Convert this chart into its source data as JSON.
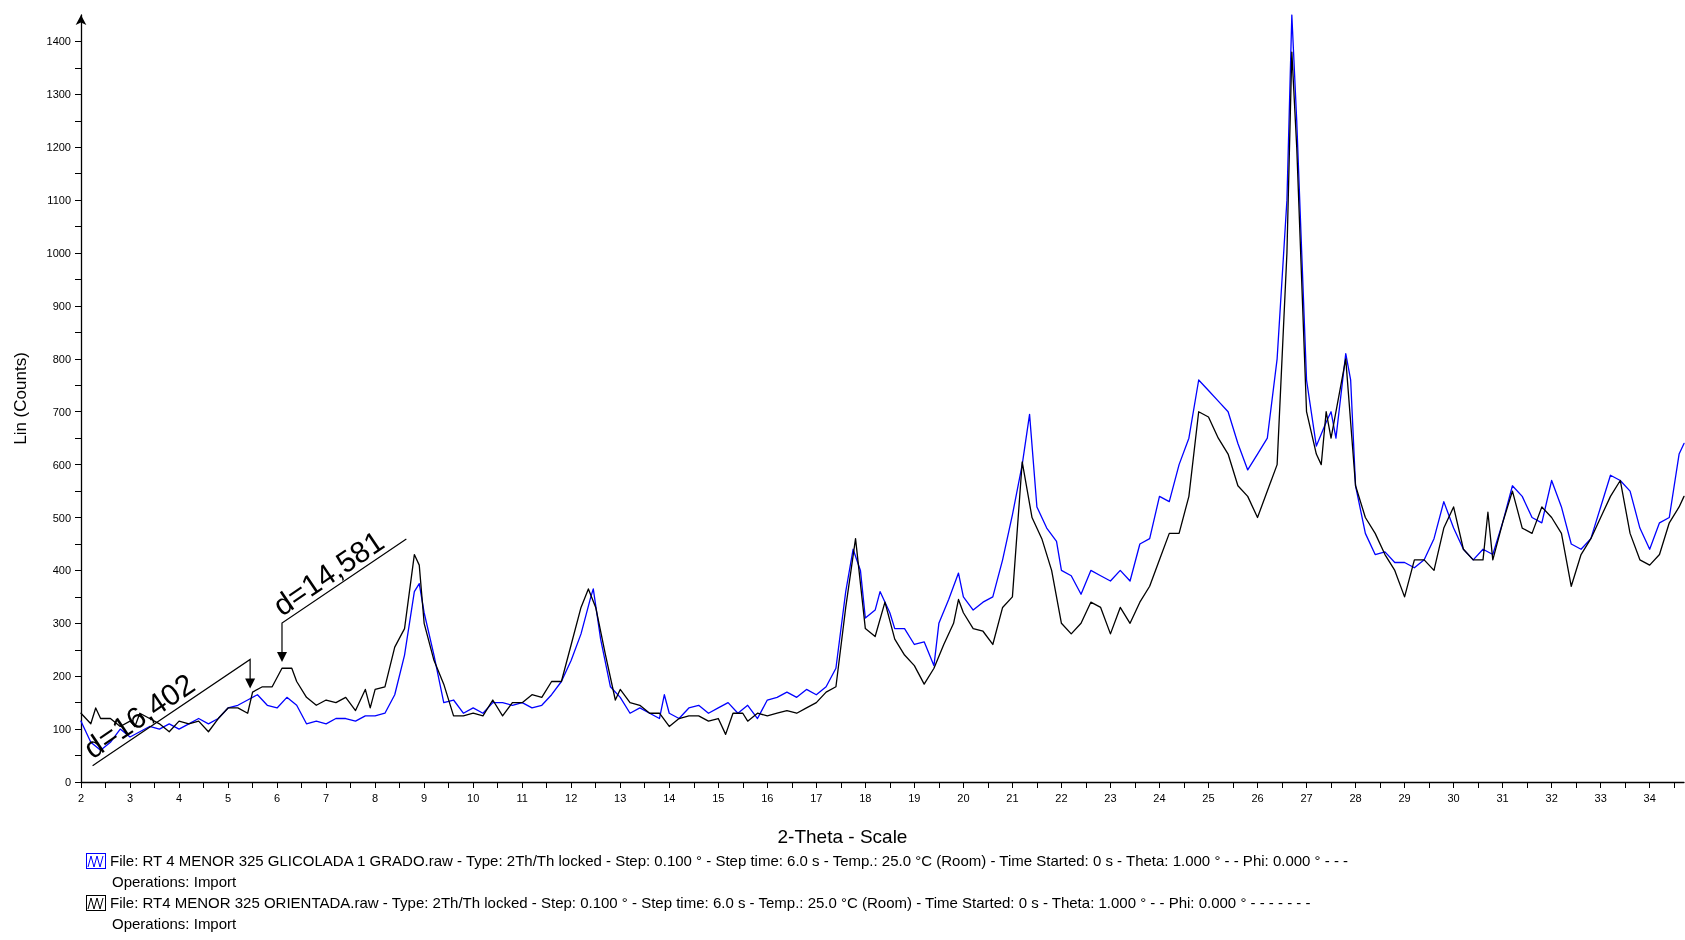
{
  "chart_data": {
    "type": "line",
    "xlabel": "2-Theta - Scale",
    "ylabel": "Lin (Counts)",
    "xlim": [
      2,
      34.7
    ],
    "ylim": [
      0,
      1450
    ],
    "xticks": [
      2,
      {
        "value": 2.5,
        "label": null
      },
      3,
      {
        "value": 3.5,
        "label": null
      },
      4,
      {
        "value": 4.5,
        "label": null
      },
      5,
      {
        "value": 5.5,
        "label": null
      },
      6,
      {
        "value": 6.5,
        "label": null
      },
      7,
      {
        "value": 7.5,
        "label": null
      },
      8,
      {
        "value": 8.5,
        "label": null
      },
      9,
      {
        "value": 9.5,
        "label": null
      },
      10,
      {
        "value": 10.5,
        "label": null
      },
      11,
      {
        "value": 11.5,
        "label": null
      },
      12,
      {
        "value": 12.5,
        "label": null
      },
      13,
      {
        "value": 13.5,
        "label": null
      },
      14,
      {
        "value": 14.5,
        "label": null
      },
      15,
      {
        "value": 15.5,
        "label": null
      },
      16,
      {
        "value": 16.5,
        "label": null
      },
      17,
      {
        "value": 17.5,
        "label": null
      },
      18,
      {
        "value": 18.5,
        "label": null
      },
      19,
      {
        "value": 19.5,
        "label": null
      },
      20,
      {
        "value": 20.5,
        "label": null
      },
      21,
      {
        "value": 21.5,
        "label": null
      },
      22,
      {
        "value": 22.5,
        "label": null
      },
      23,
      {
        "value": 23.5,
        "label": null
      },
      24,
      {
        "value": 24.5,
        "label": null
      },
      25,
      {
        "value": 25.5,
        "label": null
      },
      26,
      {
        "value": 26.5,
        "label": null
      },
      27,
      {
        "value": 27.5,
        "label": null
      },
      28,
      {
        "value": 28.5,
        "label": null
      },
      29,
      {
        "value": 29.5,
        "label": null
      },
      30,
      {
        "value": 30.5,
        "label": null
      },
      31,
      {
        "value": 31.5,
        "label": null
      },
      32,
      {
        "value": 32.5,
        "label": null
      },
      33,
      {
        "value": 33.5,
        "label": null
      },
      34,
      {
        "value": 34.5,
        "label": null
      }
    ],
    "yticks": [
      0,
      {
        "value": 50,
        "label": null
      },
      100,
      {
        "value": 150,
        "label": null
      },
      200,
      {
        "value": 250,
        "label": null
      },
      300,
      {
        "value": 350,
        "label": null
      },
      400,
      {
        "value": 450,
        "label": null
      },
      500,
      {
        "value": 550,
        "label": null
      },
      600,
      {
        "value": 650,
        "label": null
      },
      700,
      {
        "value": 750,
        "label": null
      },
      800,
      {
        "value": 850,
        "label": null
      },
      900,
      {
        "value": 950,
        "label": null
      },
      1000,
      {
        "value": 1050,
        "label": null
      },
      1100,
      {
        "value": 1150,
        "label": null
      },
      1200,
      {
        "value": 1250,
        "label": null
      },
      1300,
      {
        "value": 1350,
        "label": null
      },
      1400
    ],
    "grid": false,
    "legend": "bottom",
    "marker": "none",
    "line_style": "solid",
    "series": [
      {
        "name": "File: RT 4 MENOR 325 GLICOLADA 1 GRADO.raw - Type: 2Th/Th locked - Step: 0.100 ° - Step time: 6.0 s - Temp.: 25.0 °C (Room) - Time Started: 0 s - Theta: 1.000 ° - - Phi: 0.000 ° - - -",
        "color": "#0000ff",
        "x": [
          2.0,
          2.2,
          2.4,
          2.6,
          2.8,
          3.0,
          3.2,
          3.4,
          3.6,
          3.8,
          4.0,
          4.2,
          4.4,
          4.6,
          4.8,
          5.0,
          5.2,
          5.4,
          5.6,
          5.8,
          6.0,
          6.2,
          6.4,
          6.6,
          6.8,
          7.0,
          7.2,
          7.4,
          7.6,
          7.8,
          8.0,
          8.2,
          8.4,
          8.6,
          8.8,
          8.9,
          9.0,
          9.2,
          9.4,
          9.6,
          9.8,
          10.0,
          10.2,
          10.4,
          10.6,
          10.8,
          11.0,
          11.2,
          11.4,
          11.6,
          11.8,
          12.0,
          12.2,
          12.4,
          12.45,
          12.6,
          12.8,
          13.0,
          13.2,
          13.4,
          13.6,
          13.8,
          13.9,
          14.0,
          14.2,
          14.4,
          14.6,
          14.8,
          15.0,
          15.2,
          15.4,
          15.6,
          15.8,
          16.0,
          16.2,
          16.4,
          16.6,
          16.8,
          17.0,
          17.2,
          17.4,
          17.6,
          17.75,
          17.9,
          18.0,
          18.2,
          18.3,
          18.5,
          18.6,
          18.8,
          19.0,
          19.2,
          19.4,
          19.5,
          19.7,
          19.9,
          20.0,
          20.2,
          20.4,
          20.6,
          20.8,
          21.0,
          21.2,
          21.35,
          21.5,
          21.7,
          21.9,
          22.0,
          22.2,
          22.4,
          22.6,
          22.8,
          23.0,
          23.2,
          23.4,
          23.6,
          23.8,
          24.0,
          24.2,
          24.4,
          24.6,
          24.8,
          25.0,
          25.2,
          25.4,
          25.6,
          25.8,
          26.0,
          26.2,
          26.4,
          26.6,
          26.7,
          26.8,
          27.0,
          27.2,
          27.4,
          27.5,
          27.6,
          27.8,
          27.9,
          28.0,
          28.2,
          28.4,
          28.6,
          28.8,
          29.0,
          29.2,
          29.4,
          29.6,
          29.8,
          30.0,
          30.2,
          30.4,
          30.6,
          30.8,
          31.0,
          31.2,
          31.4,
          31.6,
          31.8,
          32.0,
          32.2,
          32.4,
          32.6,
          32.8,
          33.0,
          33.2,
          33.4,
          33.6,
          33.8,
          34.0,
          34.2,
          34.4,
          34.6,
          34.7
        ],
        "values": [
          115,
          75,
          60,
          75,
          100,
          85,
          95,
          105,
          100,
          110,
          100,
          110,
          120,
          110,
          120,
          140,
          145,
          155,
          165,
          145,
          140,
          160,
          145,
          110,
          115,
          110,
          120,
          120,
          115,
          125,
          125,
          130,
          165,
          240,
          360,
          375,
          320,
          240,
          150,
          155,
          130,
          140,
          130,
          150,
          150,
          145,
          150,
          140,
          145,
          165,
          190,
          230,
          280,
          350,
          365,
          270,
          180,
          160,
          130,
          140,
          130,
          120,
          165,
          130,
          120,
          140,
          145,
          130,
          140,
          150,
          130,
          145,
          120,
          155,
          160,
          170,
          160,
          175,
          165,
          180,
          215,
          360,
          440,
          400,
          310,
          325,
          360,
          320,
          290,
          290,
          260,
          265,
          220,
          300,
          345,
          395,
          350,
          325,
          340,
          350,
          420,
          505,
          600,
          695,
          520,
          480,
          455,
          400,
          390,
          355,
          400,
          390,
          380,
          400,
          380,
          450,
          460,
          540,
          530,
          600,
          650,
          760,
          740,
          720,
          700,
          640,
          590,
          620,
          650,
          800,
          1100,
          1450,
          1250,
          760,
          635,
          680,
          700,
          650,
          810,
          760,
          560,
          470,
          430,
          435,
          415,
          415,
          405,
          420,
          460,
          530,
          480,
          440,
          420,
          440,
          430,
          490,
          560,
          540,
          500,
          490,
          570,
          520,
          450,
          440,
          460,
          520,
          580,
          570,
          550,
          480,
          440,
          490,
          500,
          620,
          640
        ]
      },
      {
        "name": "File: RT4 MENOR 325 ORIENTADA.raw - Type: 2Th/Th locked - Step: 0.100 ° - Step time: 6.0 s - Temp.: 25.0 °C (Room) - Time Started: 0 s - Theta: 1.000 ° - - Phi: 0.000 ° - - - - - - -",
        "color": "#000000",
        "x": [
          2.0,
          2.2,
          2.3,
          2.4,
          2.6,
          2.8,
          3.0,
          3.1,
          3.2,
          3.4,
          3.6,
          3.8,
          4.0,
          4.2,
          4.4,
          4.6,
          4.8,
          5.0,
          5.2,
          5.4,
          5.5,
          5.7,
          5.9,
          6.1,
          6.3,
          6.4,
          6.6,
          6.8,
          7.0,
          7.2,
          7.4,
          7.6,
          7.8,
          7.9,
          8.0,
          8.2,
          8.4,
          8.6,
          8.8,
          8.9,
          9.0,
          9.2,
          9.4,
          9.6,
          9.8,
          10.0,
          10.2,
          10.4,
          10.6,
          10.8,
          11.0,
          11.2,
          11.4,
          11.6,
          11.8,
          12.0,
          12.2,
          12.35,
          12.5,
          12.7,
          12.9,
          13.0,
          13.2,
          13.4,
          13.6,
          13.8,
          14.0,
          14.2,
          14.4,
          14.6,
          14.8,
          15.0,
          15.15,
          15.3,
          15.5,
          15.6,
          15.8,
          16.0,
          16.2,
          16.4,
          16.6,
          16.8,
          17.0,
          17.2,
          17.4,
          17.6,
          17.8,
          18.0,
          18.2,
          18.4,
          18.6,
          18.8,
          19.0,
          19.2,
          19.4,
          19.6,
          19.8,
          19.9,
          20.0,
          20.2,
          20.4,
          20.6,
          20.8,
          21.0,
          21.2,
          21.4,
          21.6,
          21.8,
          22.0,
          22.2,
          22.4,
          22.6,
          22.8,
          23.0,
          23.2,
          23.4,
          23.6,
          23.8,
          24.0,
          24.2,
          24.4,
          24.6,
          24.8,
          25.0,
          25.2,
          25.4,
          25.6,
          25.8,
          26.0,
          26.2,
          26.4,
          26.6,
          26.7,
          26.8,
          27.0,
          27.2,
          27.3,
          27.4,
          27.5,
          27.8,
          28.0,
          28.2,
          28.4,
          28.6,
          28.8,
          29.0,
          29.2,
          29.4,
          29.6,
          29.8,
          30.0,
          30.2,
          30.4,
          30.6,
          30.7,
          30.8,
          31.0,
          31.2,
          31.4,
          31.6,
          31.8,
          32.0,
          32.2,
          32.4,
          32.6,
          32.8,
          33.0,
          33.2,
          33.4,
          33.6,
          33.8,
          34.0,
          34.2,
          34.4,
          34.6,
          34.7
        ],
        "values": [
          130,
          110,
          140,
          120,
          120,
          105,
          115,
          105,
          130,
          120,
          110,
          95,
          115,
          110,
          115,
          95,
          120,
          140,
          140,
          130,
          170,
          180,
          180,
          215,
          215,
          190,
          160,
          145,
          155,
          150,
          160,
          135,
          175,
          140,
          175,
          180,
          255,
          290,
          430,
          410,
          300,
          230,
          185,
          125,
          125,
          130,
          125,
          155,
          125,
          150,
          150,
          165,
          160,
          190,
          190,
          260,
          330,
          365,
          330,
          240,
          155,
          175,
          150,
          145,
          130,
          130,
          105,
          120,
          125,
          125,
          115,
          120,
          90,
          130,
          130,
          115,
          130,
          125,
          130,
          135,
          130,
          140,
          150,
          170,
          180,
          330,
          460,
          290,
          275,
          340,
          270,
          240,
          220,
          185,
          215,
          260,
          300,
          345,
          320,
          290,
          285,
          260,
          330,
          350,
          605,
          500,
          460,
          400,
          300,
          280,
          300,
          340,
          330,
          280,
          330,
          300,
          340,
          370,
          420,
          470,
          470,
          540,
          700,
          690,
          650,
          620,
          560,
          540,
          500,
          550,
          600,
          1000,
          1380,
          1200,
          700,
          620,
          600,
          700,
          650,
          800,
          560,
          500,
          470,
          430,
          400,
          350,
          420,
          420,
          400,
          480,
          520,
          440,
          420,
          420,
          510,
          420,
          490,
          550,
          480,
          470,
          520,
          500,
          470,
          370,
          430,
          460,
          500,
          540,
          570,
          470,
          420,
          410,
          430,
          490,
          520,
          540
        ]
      }
    ],
    "annotations": [
      {
        "text": "d=16,402",
        "x": 5.45,
        "y": 175
      },
      {
        "text": "d=14,581",
        "x": 6.1,
        "y": 225
      },
      "Operations: Import",
      "Operations: Import"
    ]
  }
}
